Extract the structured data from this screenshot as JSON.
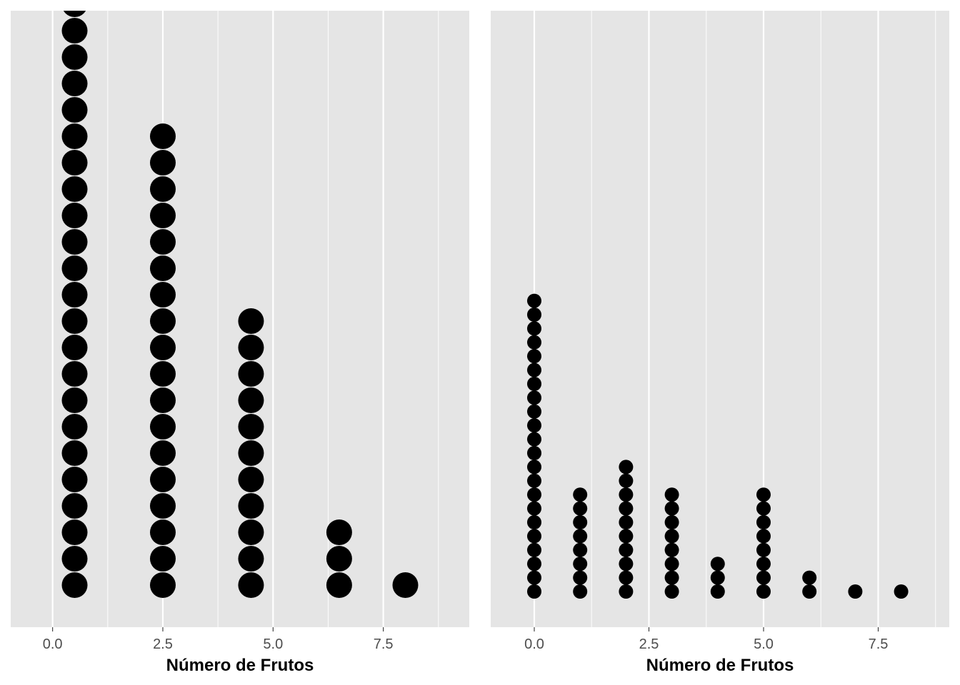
{
  "chart_data": [
    {
      "type": "dotplot",
      "xlabel": "Número de Frutos",
      "ylabel": "",
      "xlim": [
        -0.95,
        9.45
      ],
      "x_ticks": [
        0.0,
        2.5,
        5.0,
        7.5
      ],
      "x_tick_labels": [
        "0.0",
        "2.5",
        "5.0",
        "7.5"
      ],
      "grid": true,
      "points": [
        {
          "x": 0.5,
          "count": 23
        },
        {
          "x": 2.5,
          "count": 18
        },
        {
          "x": 4.5,
          "count": 11
        },
        {
          "x": 6.5,
          "count": 3
        },
        {
          "x": 8.0,
          "count": 1
        }
      ]
    },
    {
      "type": "dotplot",
      "xlabel": "Número de Frutos",
      "ylabel": "",
      "xlim": [
        -0.95,
        9.05
      ],
      "x_ticks": [
        0.0,
        2.5,
        5.0,
        7.5
      ],
      "x_tick_labels": [
        "0.0",
        "2.5",
        "5.0",
        "7.5"
      ],
      "grid": true,
      "points": [
        {
          "x": 0,
          "count": 22
        },
        {
          "x": 1,
          "count": 8
        },
        {
          "x": 2,
          "count": 10
        },
        {
          "x": 3,
          "count": 8
        },
        {
          "x": 4,
          "count": 3
        },
        {
          "x": 5,
          "count": 8
        },
        {
          "x": 6,
          "count": 2
        },
        {
          "x": 7,
          "count": 1
        },
        {
          "x": 8,
          "count": 1
        }
      ]
    }
  ],
  "colors": {
    "panel_background": "#e5e5e5",
    "grid_major": "#ffffff",
    "dot": "#000000",
    "tick_text": "#4d4d4d"
  }
}
